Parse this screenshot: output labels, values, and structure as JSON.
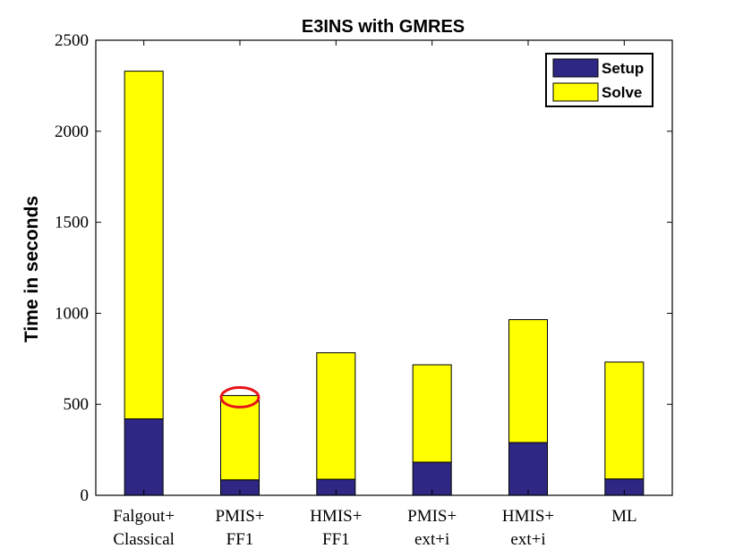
{
  "chart_data": {
    "type": "bar",
    "stacked": true,
    "title": "E3INS with GMRES",
    "xlabel": "",
    "ylabel": "Time in seconds",
    "ylim": [
      0,
      2500
    ],
    "yticks": [
      "0",
      "500",
      "1000",
      "1500",
      "2000",
      "2500"
    ],
    "categories": [
      [
        "Falgout+",
        "Classical"
      ],
      [
        "PMIS+",
        "FF1"
      ],
      [
        "HMIS+",
        "FF1"
      ],
      [
        "PMIS+",
        "ext+i"
      ],
      [
        "HMIS+",
        "ext+i"
      ],
      [
        "ML"
      ]
    ],
    "series": [
      {
        "name": "Setup",
        "color": "#2e2783",
        "values": [
          420,
          85,
          88,
          182,
          290,
          90
        ]
      },
      {
        "name": "Solve",
        "color": "#ffff00",
        "values": [
          1910,
          463,
          695,
          535,
          675,
          642
        ]
      }
    ],
    "grid": false,
    "legend_position": "top-right",
    "annotation": {
      "shape": "ellipse",
      "color": "#e8141b",
      "target_category_index": 1
    }
  }
}
